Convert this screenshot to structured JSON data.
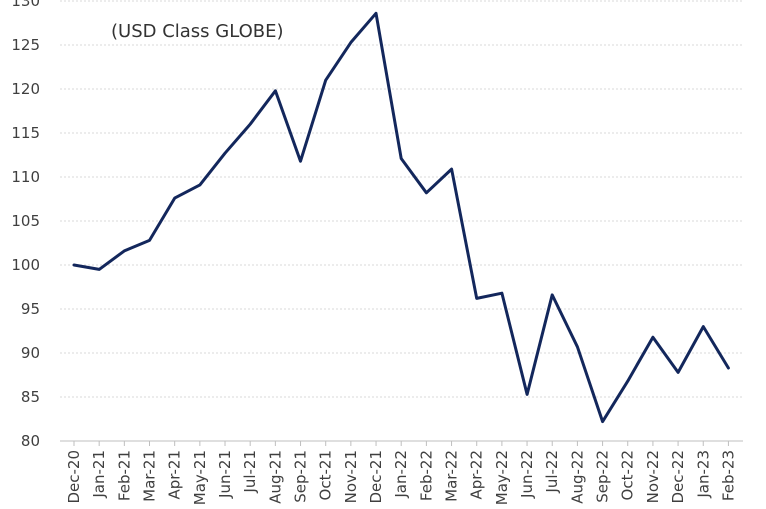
{
  "chart_data": {
    "type": "line",
    "title": "(USD Class GLOBE)",
    "xlabel": "",
    "ylabel": "",
    "ylim": [
      80,
      130
    ],
    "yticks": [
      80,
      85,
      90,
      95,
      100,
      105,
      110,
      115,
      120,
      125,
      130
    ],
    "grid": "horizontal dashed",
    "series": [
      {
        "color": "#13275c",
        "values": [
          100.0,
          99.5,
          101.6,
          102.8,
          107.6,
          109.1,
          112.7,
          116.0,
          119.8,
          111.8,
          121.0,
          125.3,
          128.6,
          112.1,
          108.2,
          110.9,
          96.2,
          96.8,
          85.3,
          96.6,
          90.7,
          82.2,
          86.8,
          91.8,
          87.8,
          93.0,
          88.3
        ]
      }
    ],
    "categories": [
      "Dec-20",
      "Jan-21",
      "Feb-21",
      "Mar-21",
      "Apr-21",
      "May-21",
      "Jun-21",
      "Jul-21",
      "Aug-21",
      "Sep-21",
      "Oct-21",
      "Nov-21",
      "Dec-21",
      "Jan-22",
      "Feb-22",
      "Mar-22",
      "Apr-22",
      "May-22",
      "Jun-22",
      "Jul-22",
      "Aug-22",
      "Sep-22",
      "Oct-22",
      "Nov-22",
      "Dec-22",
      "Jan-23",
      "Feb-23"
    ]
  }
}
